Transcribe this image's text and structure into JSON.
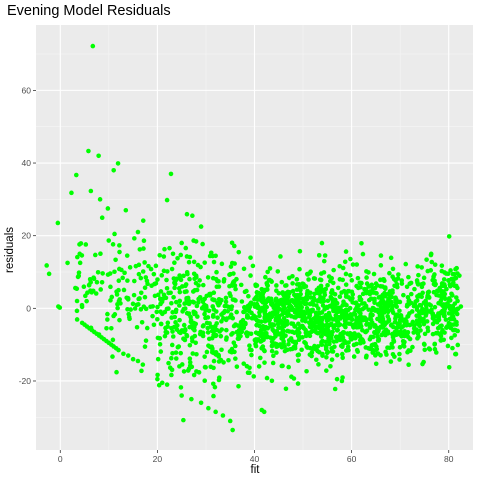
{
  "chart_data": {
    "type": "scatter",
    "title": "Evening Model Residuals",
    "xlabel": "fit",
    "ylabel": "residuals",
    "xlim": [
      -5,
      85
    ],
    "ylim": [
      -39,
      78
    ],
    "x_ticks": [
      0,
      20,
      40,
      60,
      80
    ],
    "x_tick_labels": [
      "0",
      "20",
      "40",
      "60",
      "80"
    ],
    "y_ticks": [
      -20,
      0,
      20,
      40,
      60
    ],
    "y_tick_labels": [
      "-20",
      "0",
      "20",
      "40",
      "60"
    ],
    "grid": true,
    "legend": "none",
    "colors": {
      "point": "#00FF00",
      "panel": "#EBEBEB",
      "grid_major": "#FFFFFF",
      "grid_minor": "#F5F5F5"
    },
    "series": [
      {
        "points": [
          [
            6.7,
            72.2
          ],
          [
            5.8,
            43.3
          ],
          [
            7.9,
            42.0
          ],
          [
            11.9,
            39.9
          ],
          [
            22.8,
            37.0
          ],
          [
            3.3,
            36.7
          ],
          [
            11.0,
            38.0
          ],
          [
            2.3,
            31.8
          ],
          [
            6.3,
            32.3
          ],
          [
            8.2,
            30.0
          ],
          [
            22.0,
            29.8
          ],
          [
            13.5,
            27.0
          ],
          [
            9.8,
            27.5
          ],
          [
            27.2,
            25.5
          ],
          [
            80.1,
            19.8
          ],
          [
            -0.5,
            23.5
          ],
          [
            16.0,
            21.0
          ],
          [
            29.0,
            22.5
          ],
          [
            -2.8,
            11.8
          ],
          [
            -2.3,
            9.5
          ],
          [
            -0.4,
            0.5
          ],
          [
            -0.1,
            0.2
          ],
          [
            82.5,
            0.5
          ],
          [
            82.2,
            9.0
          ],
          [
            4.0,
            15.0
          ],
          [
            12.2,
            15.5
          ],
          [
            1.5,
            12.5
          ],
          [
            25.0,
            18.0
          ],
          [
            4.5,
            -4.0
          ],
          [
            5.0,
            -4.5
          ],
          [
            5.5,
            -5.0
          ],
          [
            6.0,
            -5.5
          ],
          [
            6.5,
            -6.0
          ],
          [
            7.0,
            -6.5
          ],
          [
            7.5,
            -7.0
          ],
          [
            8.0,
            -7.5
          ],
          [
            8.5,
            -8.0
          ],
          [
            9.0,
            -8.5
          ],
          [
            9.5,
            -9.0
          ],
          [
            10.0,
            -9.5
          ],
          [
            10.5,
            -10.0
          ],
          [
            11.0,
            -10.5
          ],
          [
            11.5,
            -11.0
          ],
          [
            12.0,
            -11.5
          ],
          [
            13.0,
            -12.5
          ],
          [
            14.0,
            -13.0
          ],
          [
            15.0,
            -14.0
          ],
          [
            16.0,
            -14.5
          ],
          [
            17.0,
            -15.5
          ],
          [
            20.0,
            -19.5
          ],
          [
            21.0,
            -20.5
          ],
          [
            22.0,
            -21.0
          ],
          [
            25.0,
            -24.0
          ],
          [
            27.0,
            -25.0
          ],
          [
            29.0,
            -26.0
          ],
          [
            30.5,
            -27.5
          ],
          [
            32.0,
            -28.5
          ],
          [
            33.5,
            -29.5
          ],
          [
            35.0,
            -31.0
          ],
          [
            35.5,
            -33.5
          ],
          [
            41.5,
            -28.0
          ],
          [
            42.0,
            -28.5
          ],
          [
            57.0,
            -19.5
          ],
          [
            58.0,
            -20.0
          ],
          [
            63.0,
            -13.5
          ],
          [
            67.0,
            -12.0
          ],
          [
            75.0,
            -10.0
          ],
          [
            78.0,
            -7.0
          ]
        ]
      }
    ]
  }
}
